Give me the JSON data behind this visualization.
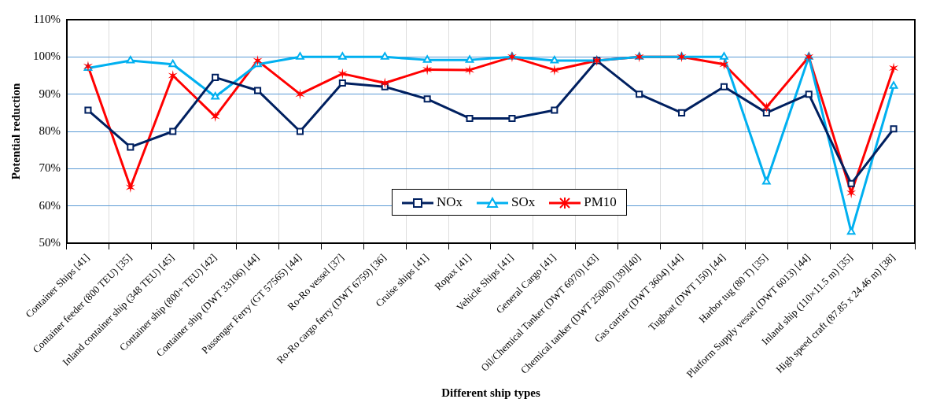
{
  "chart_data": {
    "type": "line",
    "xlabel": "Different ship types",
    "ylabel": "Potential reduction",
    "categories": [
      "Container Ships [41]",
      "Container feeder (800 TEU) [35]",
      "Inland container ship (348 TEU) [45]",
      "Container ship (800+ TEU) [42]",
      "Container ship (DWT 33106) [44]",
      "Passenger Ferry (GT 57565) [44]",
      "Ro-Ro vessel [37]",
      "Ro-Ro cargo ferry (DWT 6759) [36]",
      "Cruise ships [41]",
      "Ropax [41]",
      "Vehicle Ships [41]",
      "General Cargo [41]",
      "Oil/Chemical Tanker (DWT 6970) [43]",
      "Chemical tanker (DWT 25000) [39][40]",
      "Gas carrier (DWT 3604) [44]",
      "Tugboat (DWT 150) [44]",
      "Harbor tug (80 T) [35]",
      "Platform Supply vessel (DWT 6013) [44]",
      "Inland ship (110×11.5 m) [35]",
      "High speed craft (87.85 x 24.46 m) [38]"
    ],
    "series": [
      {
        "name": "NOx",
        "color": "#002060",
        "marker": "square",
        "values": [
          85.7,
          75.8,
          80,
          94.5,
          91,
          80,
          93,
          92,
          88.7,
          83.5,
          83.5,
          85.7,
          99,
          90,
          85,
          92,
          85,
          90,
          66,
          80.7
        ]
      },
      {
        "name": "SOx",
        "color": "#00b0f0",
        "marker": "triangle",
        "values": [
          97,
          99,
          98,
          89.3,
          98,
          100,
          100,
          100,
          99.2,
          99.2,
          100,
          99,
          99,
          100,
          100,
          100,
          66.5,
          100,
          53,
          92.2
        ]
      },
      {
        "name": "PM10",
        "color": "#ff0000",
        "marker": "cross",
        "values": [
          97.5,
          65,
          95,
          84,
          99,
          90,
          95.5,
          93,
          96.6,
          96.5,
          100,
          96.5,
          99,
          100,
          100,
          98,
          86.5,
          100,
          63.5,
          97
        ]
      }
    ],
    "ylim": [
      50,
      110
    ],
    "yticks": [
      {
        "value": 50,
        "label": "50%"
      },
      {
        "value": 60,
        "label": "60%"
      },
      {
        "value": 70,
        "label": "70%"
      },
      {
        "value": 80,
        "label": "80%"
      },
      {
        "value": 90,
        "label": "90%"
      },
      {
        "value": 100,
        "label": "100%"
      },
      {
        "value": 110,
        "label": "110%"
      }
    ],
    "grid": true,
    "legend": "bottom",
    "line_style": "solid"
  }
}
